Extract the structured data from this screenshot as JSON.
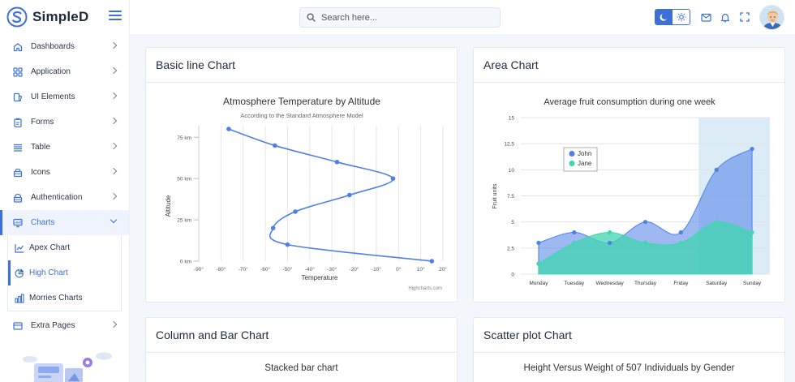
{
  "brand": {
    "name": "SimpleD"
  },
  "search": {
    "placeholder": "Search here..."
  },
  "nav": {
    "items": [
      {
        "label": "Dashboards",
        "icon": "home-icon"
      },
      {
        "label": "Application",
        "icon": "grid-icon"
      },
      {
        "label": "UI Elements",
        "icon": "layers-icon"
      },
      {
        "label": "Forms",
        "icon": "clipboard-icon"
      },
      {
        "label": "Table",
        "icon": "table-icon"
      },
      {
        "label": "Icons",
        "icon": "package-icon"
      },
      {
        "label": "Authentication",
        "icon": "lock-icon"
      },
      {
        "label": "Charts",
        "icon": "presentation-chart-icon"
      }
    ],
    "charts_submenu": [
      {
        "label": "Apex Chart",
        "icon": "line-chart-icon"
      },
      {
        "label": "High Chart",
        "icon": "pie-chart-icon"
      },
      {
        "label": "Morries Charts",
        "icon": "bar-chart-icon"
      }
    ],
    "extra": {
      "label": "Extra Pages",
      "icon": "file-stack-icon"
    }
  },
  "cards": {
    "line": {
      "title": "Basic line Chart"
    },
    "area": {
      "title": "Area Chart"
    },
    "column": {
      "title": "Column and Bar Chart",
      "subtitle": "Stacked bar chart"
    },
    "scatter": {
      "title": "Scatter plot Chart",
      "subtitle": "Height Versus Weight of 507 Individuals by Gender"
    }
  },
  "colors": {
    "accent": "#3d6fd8",
    "series_blue": "#4f7fe8",
    "series_green": "#3fd6b0",
    "highlight_band": "#dcecf6"
  },
  "chart_data": [
    {
      "type": "line",
      "title": "Atmosphere Temperature by Altitude",
      "subtitle": "According to the Standard Atmosphere Model",
      "xlabel": "Temperature",
      "ylabel": "Altitude",
      "credit": "Highcharts.com",
      "x_ticks": [
        "-90°",
        "-80°",
        "-70°",
        "-60°",
        "-50°",
        "-40°",
        "-30°",
        "-20°",
        "-10°",
        "0°",
        "10°",
        "20°"
      ],
      "y_ticks": [
        "0 km",
        "25 km",
        "50 km",
        "75 km"
      ],
      "xlim": [
        -90,
        20
      ],
      "ylim": [
        0,
        82
      ],
      "series": [
        {
          "points": [
            [
              15,
              0
            ],
            [
              -50,
              10
            ],
            [
              -56.5,
              20
            ],
            [
              -46.5,
              30
            ],
            [
              -22.1,
              40
            ],
            [
              -2.5,
              50
            ],
            [
              -27.7,
              60
            ],
            [
              -55.7,
              70
            ],
            [
              -76.5,
              80
            ]
          ]
        }
      ]
    },
    {
      "type": "area",
      "title": "Average fruit consumption during one week",
      "ylabel": "Fruit units",
      "categories": [
        "Monday",
        "Tuesday",
        "Wednesday",
        "Thursday",
        "Friday",
        "Saturday",
        "Sunday"
      ],
      "y_ticks": [
        "0",
        "2.5",
        "5",
        "7.5",
        "10",
        "12.5",
        "15"
      ],
      "ylim": [
        0,
        15
      ],
      "highlight_band": [
        "Saturday",
        "Sunday"
      ],
      "legend_position": "top-left",
      "series": [
        {
          "name": "John",
          "color": "#4f7fe8",
          "values": [
            3,
            4,
            3,
            5,
            4,
            10,
            12
          ]
        },
        {
          "name": "Jane",
          "color": "#3fd6b0",
          "values": [
            1,
            3,
            4,
            3,
            3,
            5,
            4
          ]
        }
      ]
    }
  ]
}
